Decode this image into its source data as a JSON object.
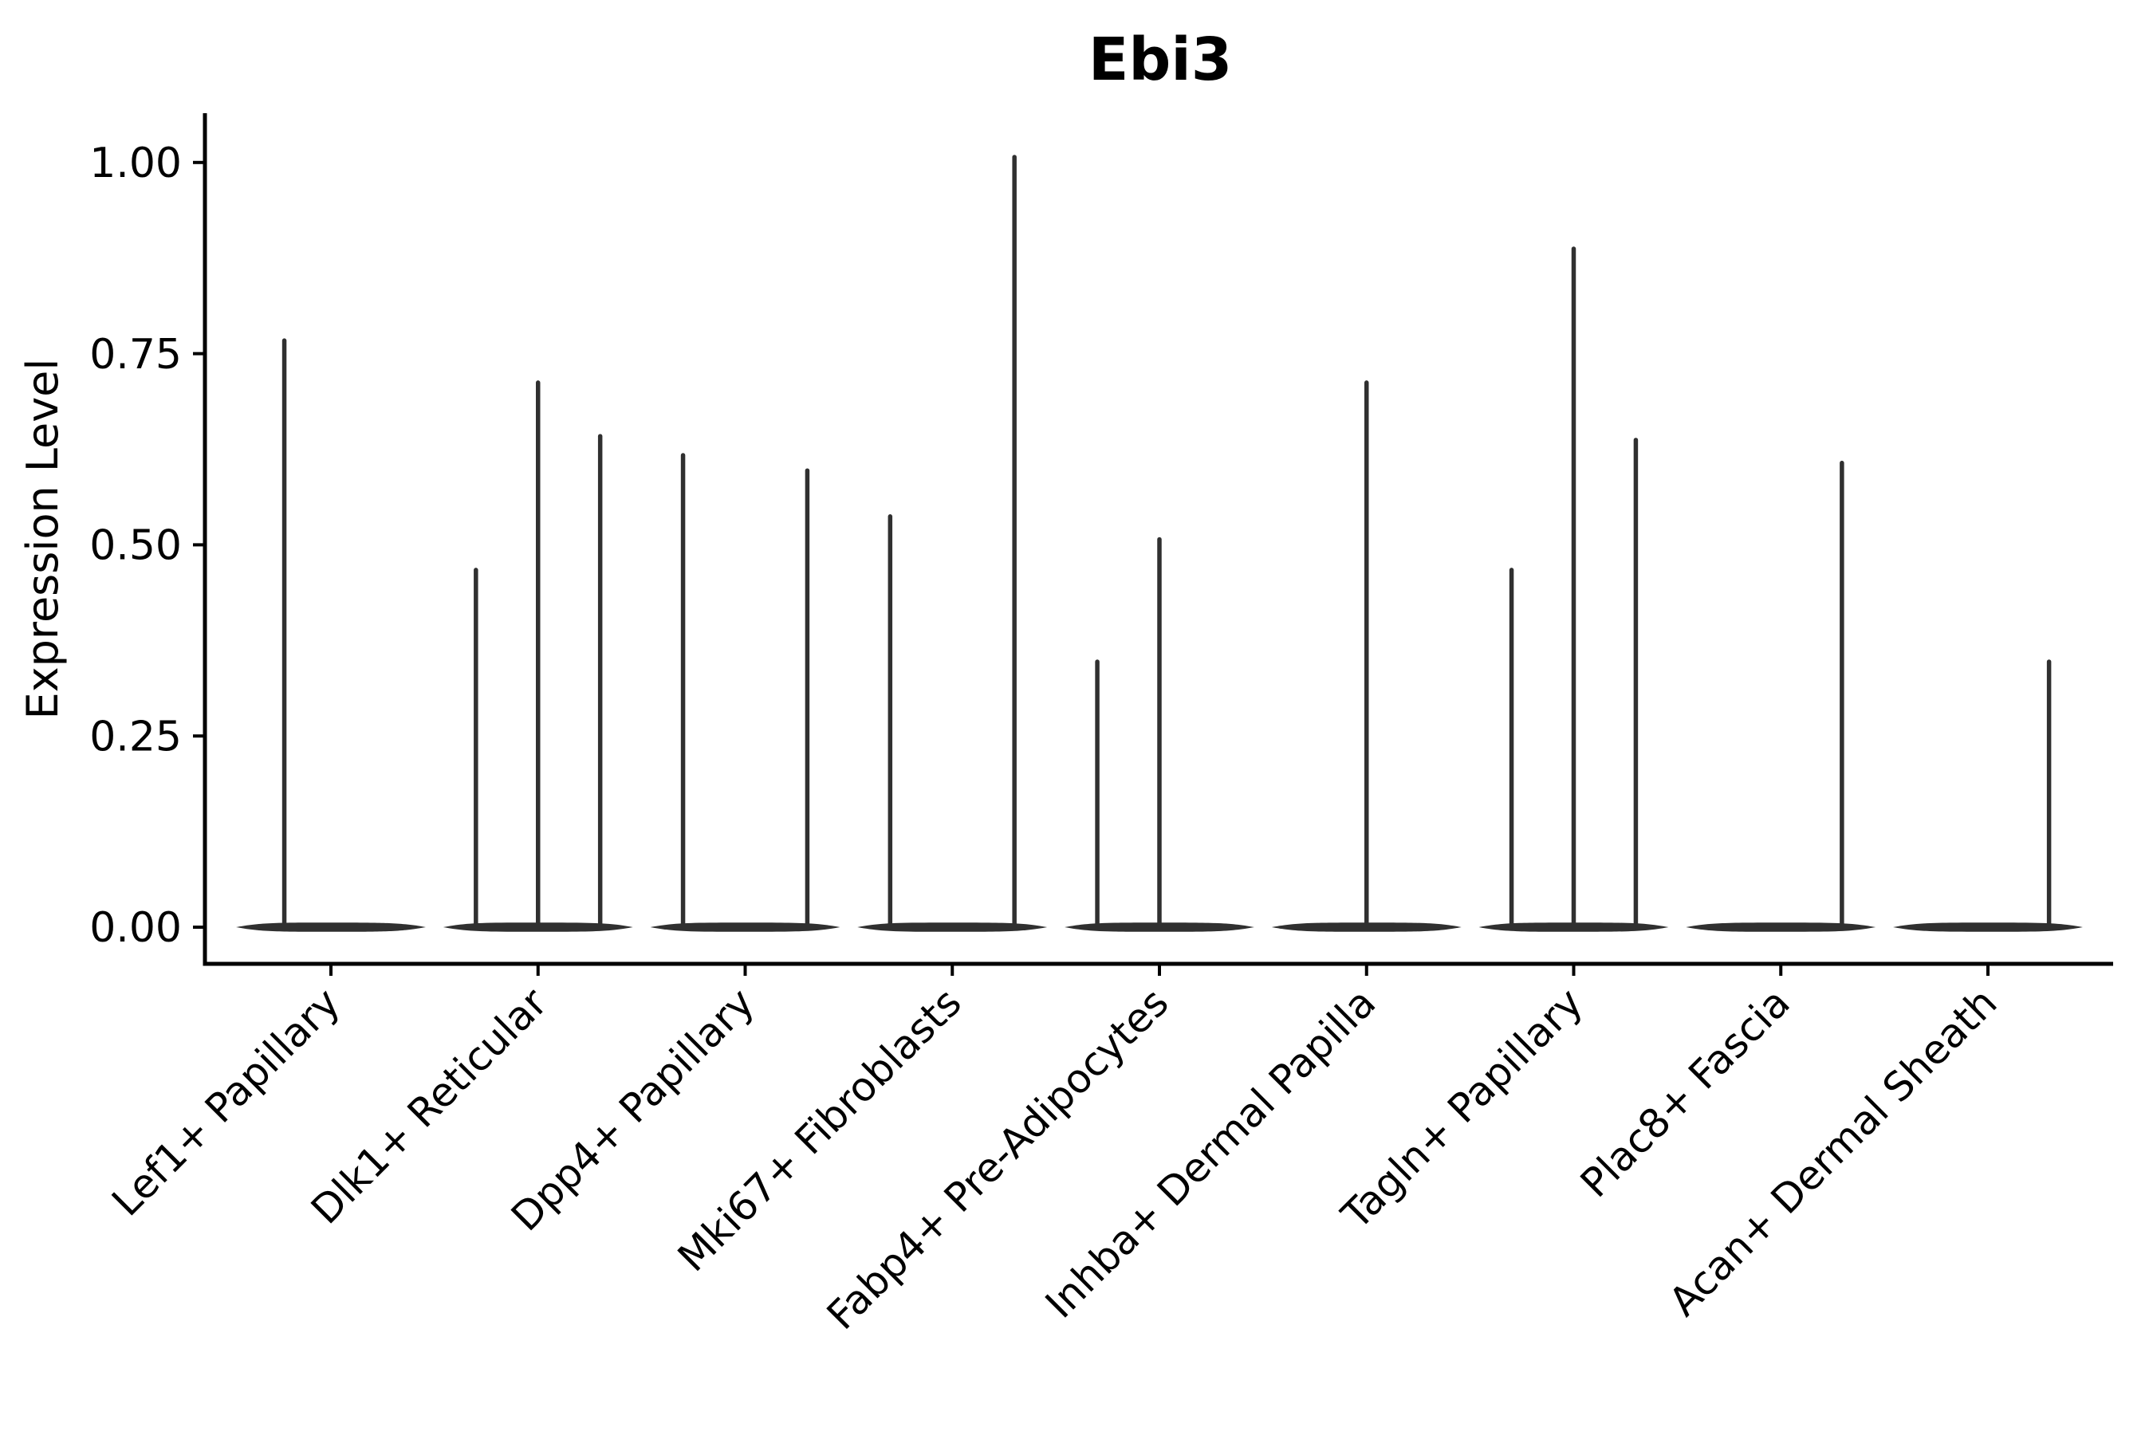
{
  "figure": {
    "title": "Ebi3",
    "background_color": "#ffffff"
  },
  "chart_data": {
    "type": "violin",
    "title": "Ebi3",
    "xlabel": "",
    "ylabel": "Expression Level",
    "ylim": [
      -0.048,
      1.113
    ],
    "yticks": [
      {
        "value": 0.0,
        "label": "0.00"
      },
      {
        "value": 0.25,
        "label": "0.25"
      },
      {
        "value": 0.5,
        "label": "0.50"
      },
      {
        "value": 0.75,
        "label": "0.75"
      },
      {
        "value": 1.0,
        "label": "1.00"
      }
    ],
    "grid": false,
    "legend": "none",
    "x_tick_rotation_deg": 45,
    "categories": [
      "Lef1+ Papillary",
      "Dlk1+ Reticular",
      "Dpp4+ Papillary",
      "Mki67+ Fibroblasts",
      "Fabp4+ Pre-Adipocytes",
      "Inhba+ Dermal Papilla",
      "Tagln+ Papillary",
      "Plac8+ Fascia",
      "Acan+ Dermal Sheath"
    ],
    "violins": [
      {
        "category": "Lef1+ Papillary",
        "baseline_value": 0,
        "body_halfwidth_frac": 0.458,
        "peaks": [
          {
            "offset_frac": -0.225,
            "value": 0.77
          }
        ]
      },
      {
        "category": "Dlk1+ Reticular",
        "baseline_value": 0,
        "body_halfwidth_frac": 0.458,
        "peaks": [
          {
            "offset_frac": -0.3,
            "value": 0.47
          },
          {
            "offset_frac": 0.0,
            "value": 0.715
          },
          {
            "offset_frac": 0.3,
            "value": 0.645
          }
        ]
      },
      {
        "category": "Dpp4+ Papillary",
        "baseline_value": 0,
        "body_halfwidth_frac": 0.458,
        "peaks": [
          {
            "offset_frac": -0.3,
            "value": 0.62
          },
          {
            "offset_frac": 0.3,
            "value": 0.6
          }
        ]
      },
      {
        "category": "Mki67+ Fibroblasts",
        "baseline_value": 0,
        "body_halfwidth_frac": 0.458,
        "peaks": [
          {
            "offset_frac": -0.3,
            "value": 0.54
          },
          {
            "offset_frac": 0.3,
            "value": 1.01
          }
        ]
      },
      {
        "category": "Fabp4+ Pre-Adipocytes",
        "baseline_value": 0,
        "body_halfwidth_frac": 0.458,
        "peaks": [
          {
            "offset_frac": -0.3,
            "value": 0.35
          },
          {
            "offset_frac": 0.0,
            "value": 0.51
          }
        ]
      },
      {
        "category": "Inhba+ Dermal Papilla",
        "baseline_value": 0,
        "body_halfwidth_frac": 0.458,
        "peaks": [
          {
            "offset_frac": 0.0,
            "value": 0.715
          }
        ]
      },
      {
        "category": "Tagln+ Papillary",
        "baseline_value": 0,
        "body_halfwidth_frac": 0.458,
        "peaks": [
          {
            "offset_frac": -0.3,
            "value": 0.47
          },
          {
            "offset_frac": 0.0,
            "value": 0.89
          },
          {
            "offset_frac": 0.3,
            "value": 0.64
          }
        ]
      },
      {
        "category": "Plac8+ Fascia",
        "baseline_value": 0,
        "body_halfwidth_frac": 0.458,
        "peaks": [
          {
            "offset_frac": 0.295,
            "value": 0.61
          }
        ]
      },
      {
        "category": "Acan+ Dermal Sheath",
        "baseline_value": 0,
        "body_halfwidth_frac": 0.458,
        "peaks": [
          {
            "offset_frac": 0.295,
            "value": 0.35
          }
        ]
      }
    ],
    "colors": {
      "violin": "#303030",
      "axis": "#000000",
      "text": "#000000",
      "background": "#ffffff"
    }
  }
}
